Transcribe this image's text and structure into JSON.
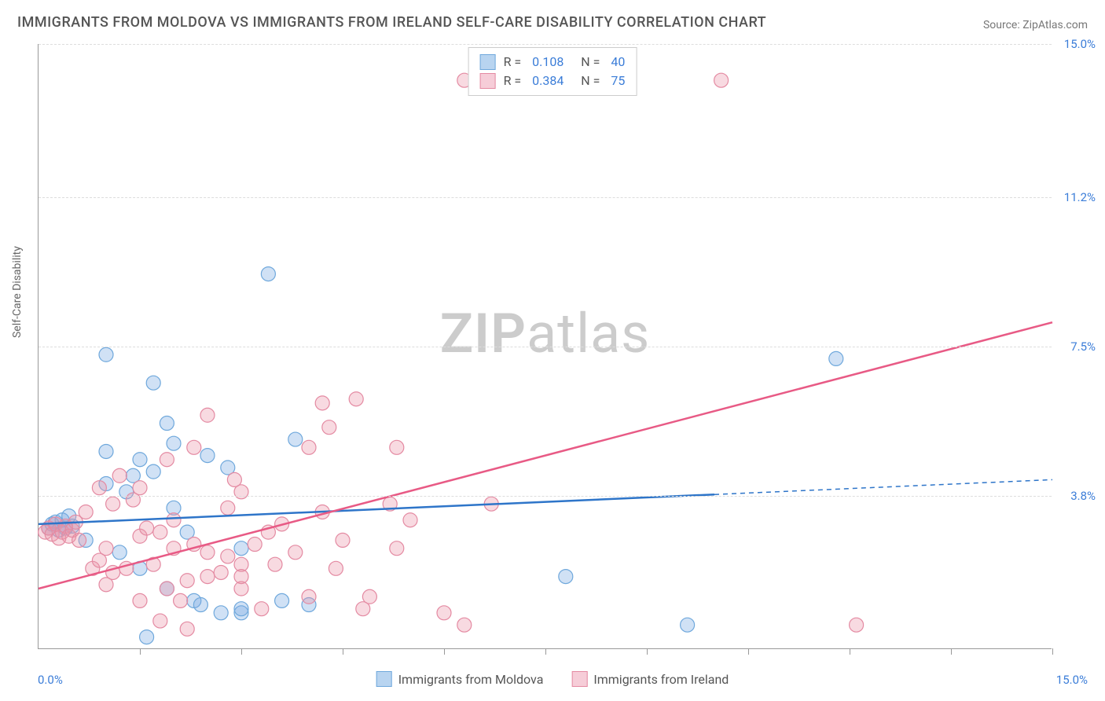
{
  "title": "IMMIGRANTS FROM MOLDOVA VS IMMIGRANTS FROM IRELAND SELF-CARE DISABILITY CORRELATION CHART",
  "source": "Source: ZipAtlas.com",
  "y_axis_label": "Self-Care Disability",
  "watermark": {
    "bold": "ZIP",
    "rest": "atlas"
  },
  "chart": {
    "type": "scatter",
    "xlim": [
      0,
      15
    ],
    "ylim": [
      0,
      15
    ],
    "x_min_label": "0.0%",
    "x_max_label": "15.0%",
    "y_ticks": [
      3.8,
      7.5,
      11.2,
      15.0
    ],
    "y_tick_labels": [
      "3.8%",
      "7.5%",
      "11.2%",
      "15.0%"
    ],
    "x_tick_positions": [
      1.5,
      3.0,
      4.5,
      6.0,
      7.5,
      9.0,
      10.5,
      12.0,
      13.5,
      15.0
    ],
    "grid_color": "#dddddd",
    "background_color": "#ffffff",
    "axis_color": "#999999",
    "marker_radius": 9,
    "marker_stroke_width": 1.2,
    "series": [
      {
        "name": "Immigrants from Moldova",
        "color_fill": "rgba(120,170,225,0.35)",
        "color_stroke": "#6fa8dc",
        "swatch_fill": "#b8d4f0",
        "swatch_border": "#6fa8dc",
        "r": "0.108",
        "n": "40",
        "trend": {
          "x1": 0,
          "y1": 3.1,
          "x2": 15,
          "y2": 4.2,
          "solid_until_x": 10.0
        },
        "trend_color": "#2e75c9",
        "trend_width": 2.5,
        "points": [
          [
            0.15,
            3.0
          ],
          [
            0.2,
            3.1
          ],
          [
            0.25,
            3.15
          ],
          [
            0.3,
            2.95
          ],
          [
            0.35,
            3.2
          ],
          [
            0.4,
            3.0
          ],
          [
            0.45,
            3.3
          ],
          [
            0.5,
            3.05
          ],
          [
            0.7,
            2.7
          ],
          [
            1.0,
            4.1
          ],
          [
            1.0,
            4.9
          ],
          [
            1.0,
            7.3
          ],
          [
            1.3,
            3.9
          ],
          [
            1.4,
            4.3
          ],
          [
            1.5,
            2.0
          ],
          [
            1.5,
            4.7
          ],
          [
            1.6,
            0.3
          ],
          [
            1.7,
            4.4
          ],
          [
            1.7,
            6.6
          ],
          [
            1.9,
            1.5
          ],
          [
            1.9,
            5.6
          ],
          [
            2.0,
            5.1
          ],
          [
            2.2,
            2.9
          ],
          [
            2.3,
            1.2
          ],
          [
            2.4,
            1.1
          ],
          [
            2.5,
            4.8
          ],
          [
            2.7,
            0.9
          ],
          [
            2.8,
            4.5
          ],
          [
            3.0,
            0.9
          ],
          [
            3.0,
            2.5
          ],
          [
            3.0,
            1.0
          ],
          [
            3.4,
            9.3
          ],
          [
            3.6,
            1.2
          ],
          [
            3.8,
            5.2
          ],
          [
            4.0,
            1.1
          ],
          [
            7.8,
            1.8
          ],
          [
            9.6,
            0.6
          ],
          [
            11.8,
            7.2
          ],
          [
            2.0,
            3.5
          ],
          [
            1.2,
            2.4
          ]
        ]
      },
      {
        "name": "Immigrants from Ireland",
        "color_fill": "rgba(235,150,170,0.35)",
        "color_stroke": "#e48aa2",
        "swatch_fill": "#f6cdd8",
        "swatch_border": "#e48aa2",
        "r": "0.384",
        "n": "75",
        "trend": {
          "x1": 0,
          "y1": 1.5,
          "x2": 15,
          "y2": 8.1,
          "solid_until_x": 15.0
        },
        "trend_color": "#e85a85",
        "trend_width": 2.5,
        "points": [
          [
            0.1,
            2.9
          ],
          [
            0.15,
            3.0
          ],
          [
            0.2,
            2.85
          ],
          [
            0.25,
            3.1
          ],
          [
            0.3,
            2.75
          ],
          [
            0.35,
            2.9
          ],
          [
            0.4,
            3.05
          ],
          [
            0.45,
            2.8
          ],
          [
            0.5,
            2.95
          ],
          [
            0.55,
            3.15
          ],
          [
            0.6,
            2.7
          ],
          [
            0.7,
            3.4
          ],
          [
            0.8,
            2.0
          ],
          [
            0.9,
            2.2
          ],
          [
            1.0,
            1.6
          ],
          [
            1.0,
            2.5
          ],
          [
            1.1,
            3.6
          ],
          [
            1.2,
            4.3
          ],
          [
            1.3,
            2.0
          ],
          [
            1.4,
            3.7
          ],
          [
            1.5,
            1.2
          ],
          [
            1.5,
            2.8
          ],
          [
            1.5,
            4.0
          ],
          [
            1.7,
            2.1
          ],
          [
            1.8,
            0.7
          ],
          [
            1.9,
            1.5
          ],
          [
            1.9,
            4.7
          ],
          [
            2.0,
            2.5
          ],
          [
            2.0,
            3.2
          ],
          [
            2.2,
            0.5
          ],
          [
            2.2,
            1.7
          ],
          [
            2.3,
            5.0
          ],
          [
            2.3,
            2.6
          ],
          [
            2.5,
            1.8
          ],
          [
            2.5,
            2.4
          ],
          [
            2.5,
            5.8
          ],
          [
            2.7,
            1.9
          ],
          [
            2.8,
            2.3
          ],
          [
            2.8,
            3.5
          ],
          [
            3.0,
            1.5
          ],
          [
            3.0,
            2.1
          ],
          [
            3.0,
            3.9
          ],
          [
            3.0,
            1.8
          ],
          [
            3.2,
            2.6
          ],
          [
            3.3,
            1.0
          ],
          [
            3.5,
            2.1
          ],
          [
            3.6,
            3.1
          ],
          [
            3.8,
            2.4
          ],
          [
            4.0,
            1.3
          ],
          [
            4.0,
            5.0
          ],
          [
            4.2,
            3.4
          ],
          [
            4.2,
            6.1
          ],
          [
            4.3,
            5.5
          ],
          [
            4.5,
            2.7
          ],
          [
            4.7,
            6.2
          ],
          [
            4.8,
            1.0
          ],
          [
            4.9,
            1.3
          ],
          [
            5.2,
            3.6
          ],
          [
            5.3,
            5.0
          ],
          [
            5.3,
            2.5
          ],
          [
            5.5,
            3.2
          ],
          [
            6.0,
            0.9
          ],
          [
            6.3,
            0.6
          ],
          [
            6.3,
            14.1
          ],
          [
            6.7,
            3.6
          ],
          [
            10.1,
            14.1
          ],
          [
            12.1,
            0.6
          ],
          [
            1.6,
            3.0
          ],
          [
            1.8,
            2.9
          ],
          [
            0.9,
            4.0
          ],
          [
            2.1,
            1.2
          ],
          [
            3.4,
            2.9
          ],
          [
            2.9,
            4.2
          ],
          [
            4.4,
            2.0
          ],
          [
            1.1,
            1.9
          ]
        ]
      }
    ],
    "legend_bottom": [
      {
        "label": "Immigrants from Moldova",
        "series": 0
      },
      {
        "label": "Immigrants from Ireland",
        "series": 1
      }
    ]
  }
}
